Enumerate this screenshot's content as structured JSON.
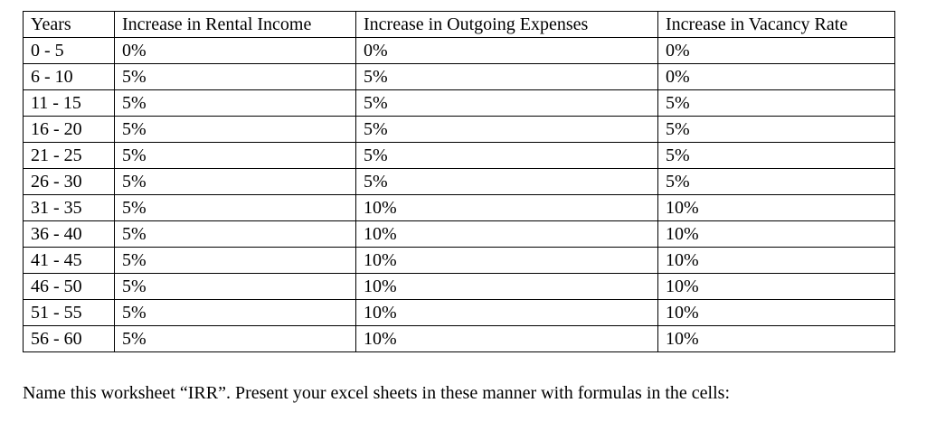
{
  "table": {
    "headers": [
      "Years",
      "Increase in Rental Income",
      "Increase in Outgoing Expenses",
      "Increase in Vacancy Rate"
    ],
    "rows": [
      [
        "0 - 5",
        "0%",
        "0%",
        "0%"
      ],
      [
        "6 - 10",
        "5%",
        "5%",
        "0%"
      ],
      [
        "11 - 15",
        "5%",
        "5%",
        "5%"
      ],
      [
        "16 - 20",
        "5%",
        "5%",
        "5%"
      ],
      [
        "21 - 25",
        "5%",
        "5%",
        "5%"
      ],
      [
        "26 - 30",
        "5%",
        "5%",
        "5%"
      ],
      [
        "31 - 35",
        "5%",
        "10%",
        "10%"
      ],
      [
        "36 - 40",
        "5%",
        "10%",
        "10%"
      ],
      [
        "41 - 45",
        "5%",
        "10%",
        "10%"
      ],
      [
        "46 - 50",
        "5%",
        "10%",
        "10%"
      ],
      [
        "51 - 55",
        "5%",
        "10%",
        "10%"
      ],
      [
        "56 - 60",
        "5%",
        "10%",
        "10%"
      ]
    ]
  },
  "instructions": "Name this worksheet “IRR”. Present your excel sheets in these manner with formulas in the cells:"
}
